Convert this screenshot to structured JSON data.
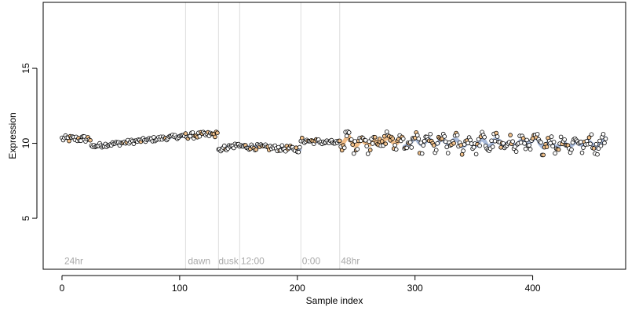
{
  "chart_data": {
    "type": "scatter",
    "xlabel": "Sample index",
    "ylabel": "Expression",
    "xlim": [
      -16,
      479
    ],
    "ylim": [
      1.6,
      19.4
    ],
    "x_ticks": [
      0,
      100,
      200,
      300,
      400
    ],
    "y_ticks": [
      5,
      10,
      15
    ],
    "marker_fill_colors": [
      "#ffffff",
      "#f2c28c"
    ],
    "marker_stroke_color": "#000000",
    "smooth_line_colors": {
      "blue": "#9fb3d6",
      "orange": "#f2b77a"
    },
    "vertical_markers": [
      {
        "x": 105,
        "label": ""
      },
      {
        "x": 133,
        "label": ""
      },
      {
        "x": 151,
        "label": ""
      },
      {
        "x": 203,
        "label": ""
      },
      {
        "x": 236,
        "label": ""
      }
    ],
    "annotations": [
      {
        "x": 2,
        "y": 1.95,
        "label": "24hr"
      },
      {
        "x": 107,
        "y": 1.95,
        "label": "dawn"
      },
      {
        "x": 133,
        "y": 1.95,
        "label": "dusk"
      },
      {
        "x": 152,
        "y": 1.95,
        "label": "12:00"
      },
      {
        "x": 204,
        "y": 1.95,
        "label": "0:00"
      },
      {
        "x": 237,
        "y": 1.95,
        "label": "48hr"
      }
    ],
    "segments": [
      {
        "x_start": 0,
        "x_end": 24,
        "y_start": 10.3,
        "y_end": 10.3,
        "noise": 0.22,
        "orange_fraction": 0.3,
        "line": "none"
      },
      {
        "x_start": 25,
        "x_end": 104,
        "y_start": 9.8,
        "y_end": 10.5,
        "noise": 0.15,
        "orange_fraction": 0.1,
        "line": "blue"
      },
      {
        "x_start": 105,
        "x_end": 132,
        "y_start": 10.5,
        "y_end": 10.6,
        "noise": 0.2,
        "orange_fraction": 0.45,
        "line": "none"
      },
      {
        "x_start": 133,
        "x_end": 150,
        "y_start": 9.6,
        "y_end": 9.9,
        "noise": 0.18,
        "orange_fraction": 0.1,
        "line": "blue"
      },
      {
        "x_start": 151,
        "x_end": 202,
        "y_start": 9.8,
        "y_end": 9.6,
        "noise": 0.2,
        "orange_fraction": 0.15,
        "line": "blue"
      },
      {
        "x_start": 203,
        "x_end": 236,
        "y_start": 10.2,
        "y_end": 10.0,
        "noise": 0.18,
        "orange_fraction": 0.2,
        "line": "blue"
      },
      {
        "x_start": 237,
        "x_end": 290,
        "y_start": 10.1,
        "y_end": 10.2,
        "noise": 0.45,
        "orange_fraction": 0.55,
        "line": "orange"
      },
      {
        "x_start": 291,
        "x_end": 462,
        "y_start": 10.0,
        "y_end": 10.0,
        "noise": 0.42,
        "orange_fraction": 0.2,
        "line": "blue"
      }
    ]
  }
}
